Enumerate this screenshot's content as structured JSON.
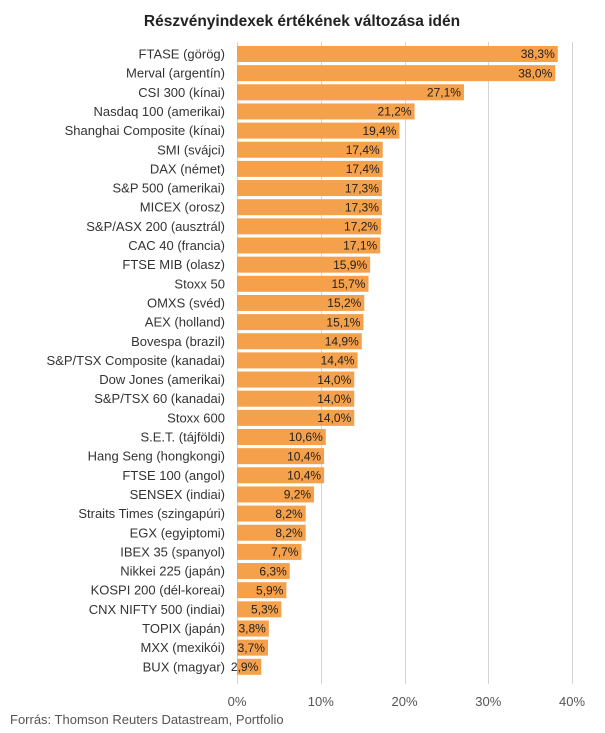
{
  "chart_data": {
    "type": "bar",
    "orientation": "horizontal",
    "title": "Részvényindexek értékének változása idén",
    "source": "Forrás: Thomson Reuters Datastream, Portfolio",
    "bar_color": "#F5A04A",
    "xlim": [
      0,
      40
    ],
    "xticks": [
      0,
      10,
      20,
      30,
      40
    ],
    "xtick_labels": [
      "0%",
      "10%",
      "20%",
      "30%",
      "40%"
    ],
    "grid": true,
    "categories": [
      "FTASE (görög)",
      "Merval (argentín)",
      "CSI 300 (kínai)",
      "Nasdaq 100 (amerikai)",
      "Shanghai Composite (kínai)",
      "SMI (svájci)",
      "DAX (német)",
      "S&P 500 (amerikai)",
      "MICEX (orosz)",
      "S&P/ASX 200 (ausztrál)",
      "CAC 40 (francia)",
      "FTSE MIB (olasz)",
      "Stoxx 50",
      "OMXS (svéd)",
      "AEX (holland)",
      "Bovespa (brazil)",
      "S&P/TSX Composite (kanadai)",
      "Dow Jones (amerikai)",
      "S&P/TSX 60 (kanadai)",
      "Stoxx 600",
      "S.E.T. (tájföldi)",
      "Hang Seng (hongkongi)",
      "FTSE 100 (angol)",
      "SENSEX (indiai)",
      "Straits Times (szingapúri)",
      "EGX (egyiptomi)",
      "IBEX 35 (spanyol)",
      "Nikkei 225 (japán)",
      "KOSPI 200 (dél-koreai)",
      "CNX NIFTY 500 (indiai)",
      "TOPIX (japán)",
      "MXX (mexikói)",
      "BUX (magyar)"
    ],
    "values": [
      38.3,
      38.0,
      27.1,
      21.2,
      19.4,
      17.4,
      17.4,
      17.3,
      17.3,
      17.2,
      17.1,
      15.9,
      15.7,
      15.2,
      15.1,
      14.9,
      14.4,
      14.0,
      14.0,
      14.0,
      10.6,
      10.4,
      10.4,
      9.2,
      8.2,
      8.2,
      7.7,
      6.3,
      5.9,
      5.3,
      3.8,
      3.7,
      2.9
    ],
    "value_labels": [
      "38,3%",
      "38,0%",
      "27,1%",
      "21,2%",
      "19,4%",
      "17,4%",
      "17,4%",
      "17,3%",
      "17,3%",
      "17,2%",
      "17,1%",
      "15,9%",
      "15,7%",
      "15,2%",
      "15,1%",
      "14,9%",
      "14,4%",
      "14,0%",
      "14,0%",
      "14,0%",
      "10,6%",
      "10,4%",
      "10,4%",
      "9,2%",
      "8,2%",
      "8,2%",
      "7,7%",
      "6,3%",
      "5,9%",
      "5,3%",
      "3,8%",
      "3,7%",
      "2,9%"
    ]
  }
}
